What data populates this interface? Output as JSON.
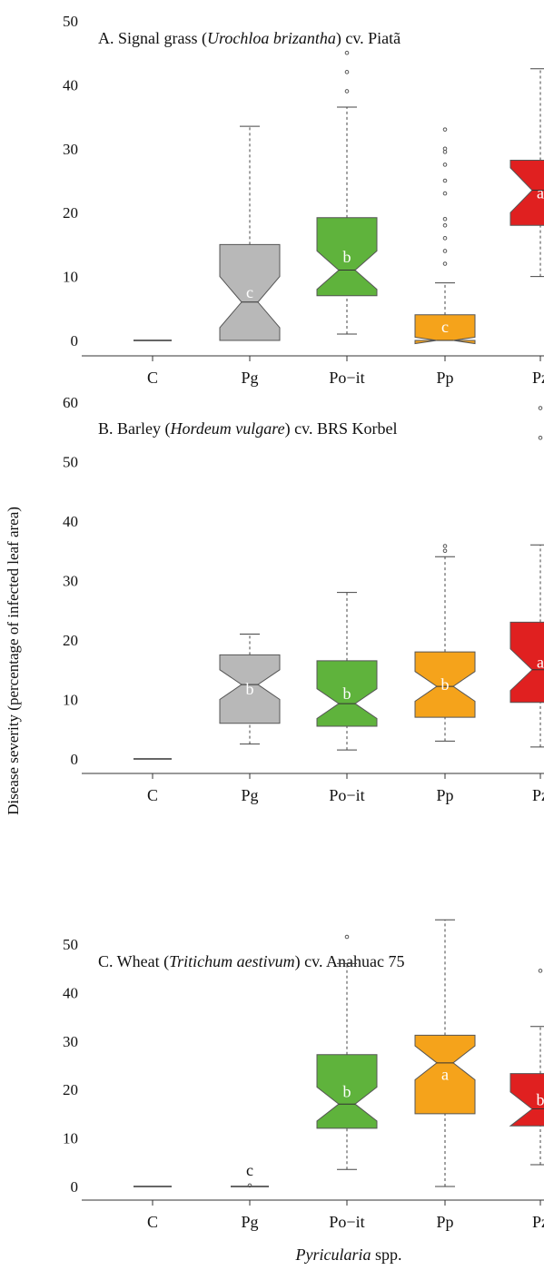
{
  "chart_data": [
    {
      "type": "box",
      "title_prefix": "A. Signal grass (",
      "title_italic": "Urochloa brizantha",
      "title_suffix": ") cv. Piatã",
      "categories": [
        "C",
        "Pg",
        "Po−it",
        "Pp",
        "Pz"
      ],
      "yticks": [
        0,
        10,
        20,
        30,
        40,
        50
      ],
      "ylim": [
        0,
        50
      ],
      "boxes": [
        {
          "category": "C",
          "min": 0,
          "q1": 0,
          "median": 0,
          "q3": 0,
          "max": 0,
          "notch": 0,
          "outliers": [],
          "color": "#b8b8b8",
          "letter": ""
        },
        {
          "category": "Pg",
          "min": 0,
          "q1": 0,
          "median": 6,
          "q3": 15,
          "max": 33.5,
          "notch": 4,
          "outliers": [],
          "color": "#b8b8b8",
          "letter": "c"
        },
        {
          "category": "Po−it",
          "min": 1,
          "q1": 7,
          "median": 11,
          "q3": 19.2,
          "max": 36.5,
          "notch": 3,
          "outliers": [
            39,
            42,
            45
          ],
          "color": "#5fb33c",
          "letter": "b"
        },
        {
          "category": "Pp",
          "min": 0,
          "q1": 0,
          "median": 0,
          "q3": 4,
          "max": 9,
          "notch": 0.5,
          "outliers": [
            12,
            14,
            16,
            18,
            19,
            23,
            25,
            27.5,
            29.5,
            30,
            33
          ],
          "color": "#f5a31b",
          "letter": "c"
        },
        {
          "category": "Pz",
          "min": 10,
          "q1": 18,
          "median": 23.5,
          "q3": 28.2,
          "max": 42.5,
          "notch": 3.5,
          "outliers": [],
          "color": "#e02020",
          "letter": "a"
        }
      ]
    },
    {
      "type": "box",
      "title_prefix": "B. Barley (",
      "title_italic": "Hordeum vulgare",
      "title_suffix": ") cv. BRS Korbel",
      "categories": [
        "C",
        "Pg",
        "Po−it",
        "Pp",
        "Pz"
      ],
      "yticks": [
        0,
        10,
        20,
        30,
        40,
        50,
        60
      ],
      "ylim": [
        0,
        60
      ],
      "boxes": [
        {
          "category": "C",
          "min": 0,
          "q1": 0,
          "median": 0,
          "q3": 0,
          "max": 0,
          "notch": 0,
          "outliers": [],
          "color": "#b8b8b8",
          "letter": ""
        },
        {
          "category": "Pg",
          "min": 2.5,
          "q1": 6,
          "median": 12.5,
          "q3": 17.5,
          "max": 21,
          "notch": 2.5,
          "outliers": [],
          "color": "#b8b8b8",
          "letter": "b"
        },
        {
          "category": "Po−it",
          "min": 1.5,
          "q1": 5.5,
          "median": 9.3,
          "q3": 16.5,
          "max": 28,
          "notch": 2.5,
          "outliers": [],
          "color": "#5fb33c",
          "letter": "b"
        },
        {
          "category": "Pp",
          "min": 3,
          "q1": 7,
          "median": 12.2,
          "q3": 18,
          "max": 34,
          "notch": 2.5,
          "outliers": [
            35,
            35.8
          ],
          "color": "#f5a31b",
          "letter": "b"
        },
        {
          "category": "Pz",
          "min": 2,
          "q1": 9.5,
          "median": 15,
          "q3": 23,
          "max": 36,
          "notch": 3.5,
          "outliers": [
            54,
            59
          ],
          "color": "#e02020",
          "letter": "a"
        }
      ]
    },
    {
      "type": "box",
      "title_prefix": "C. Wheat (",
      "title_italic": "Tritichum aestivum",
      "title_suffix": ") cv. Anahuac 75",
      "categories": [
        "C",
        "Pg",
        "Po−it",
        "Pp",
        "Pz"
      ],
      "yticks": [
        0,
        10,
        20,
        30,
        40,
        50
      ],
      "ylim": [
        0,
        50
      ],
      "boxes": [
        {
          "category": "C",
          "min": 0,
          "q1": 0,
          "median": 0,
          "q3": 0,
          "max": 0,
          "notch": 0,
          "outliers": [],
          "color": "#b8b8b8",
          "letter": ""
        },
        {
          "category": "Pg",
          "min": 0,
          "q1": 0,
          "median": 0,
          "q3": 0,
          "max": 0,
          "notch": 0,
          "outliers": [
            0.2
          ],
          "color": "#b8b8b8",
          "letter": "c"
        },
        {
          "category": "Po−it",
          "min": 3.5,
          "q1": 12,
          "median": 17,
          "q3": 27.2,
          "max": 46,
          "notch": 3.5,
          "outliers": [
            51.5
          ],
          "color": "#5fb33c",
          "letter": "b"
        },
        {
          "category": "Pp",
          "min": 0,
          "q1": 15,
          "median": 25.5,
          "q3": 31.2,
          "max": 55,
          "notch": 3.5,
          "outliers": [],
          "color": "#f5a31b",
          "letter": "a"
        },
        {
          "category": "Pz",
          "min": 4.5,
          "q1": 12.5,
          "median": 16,
          "q3": 23.3,
          "max": 33,
          "notch": 3.5,
          "outliers": [
            44.5
          ],
          "color": "#e02020",
          "letter": "b"
        }
      ]
    }
  ],
  "ylabel": "Disease severity (percentage of infected leaf area)",
  "xlabel_italic": "Pyricularia",
  "xlabel_suffix": " spp."
}
